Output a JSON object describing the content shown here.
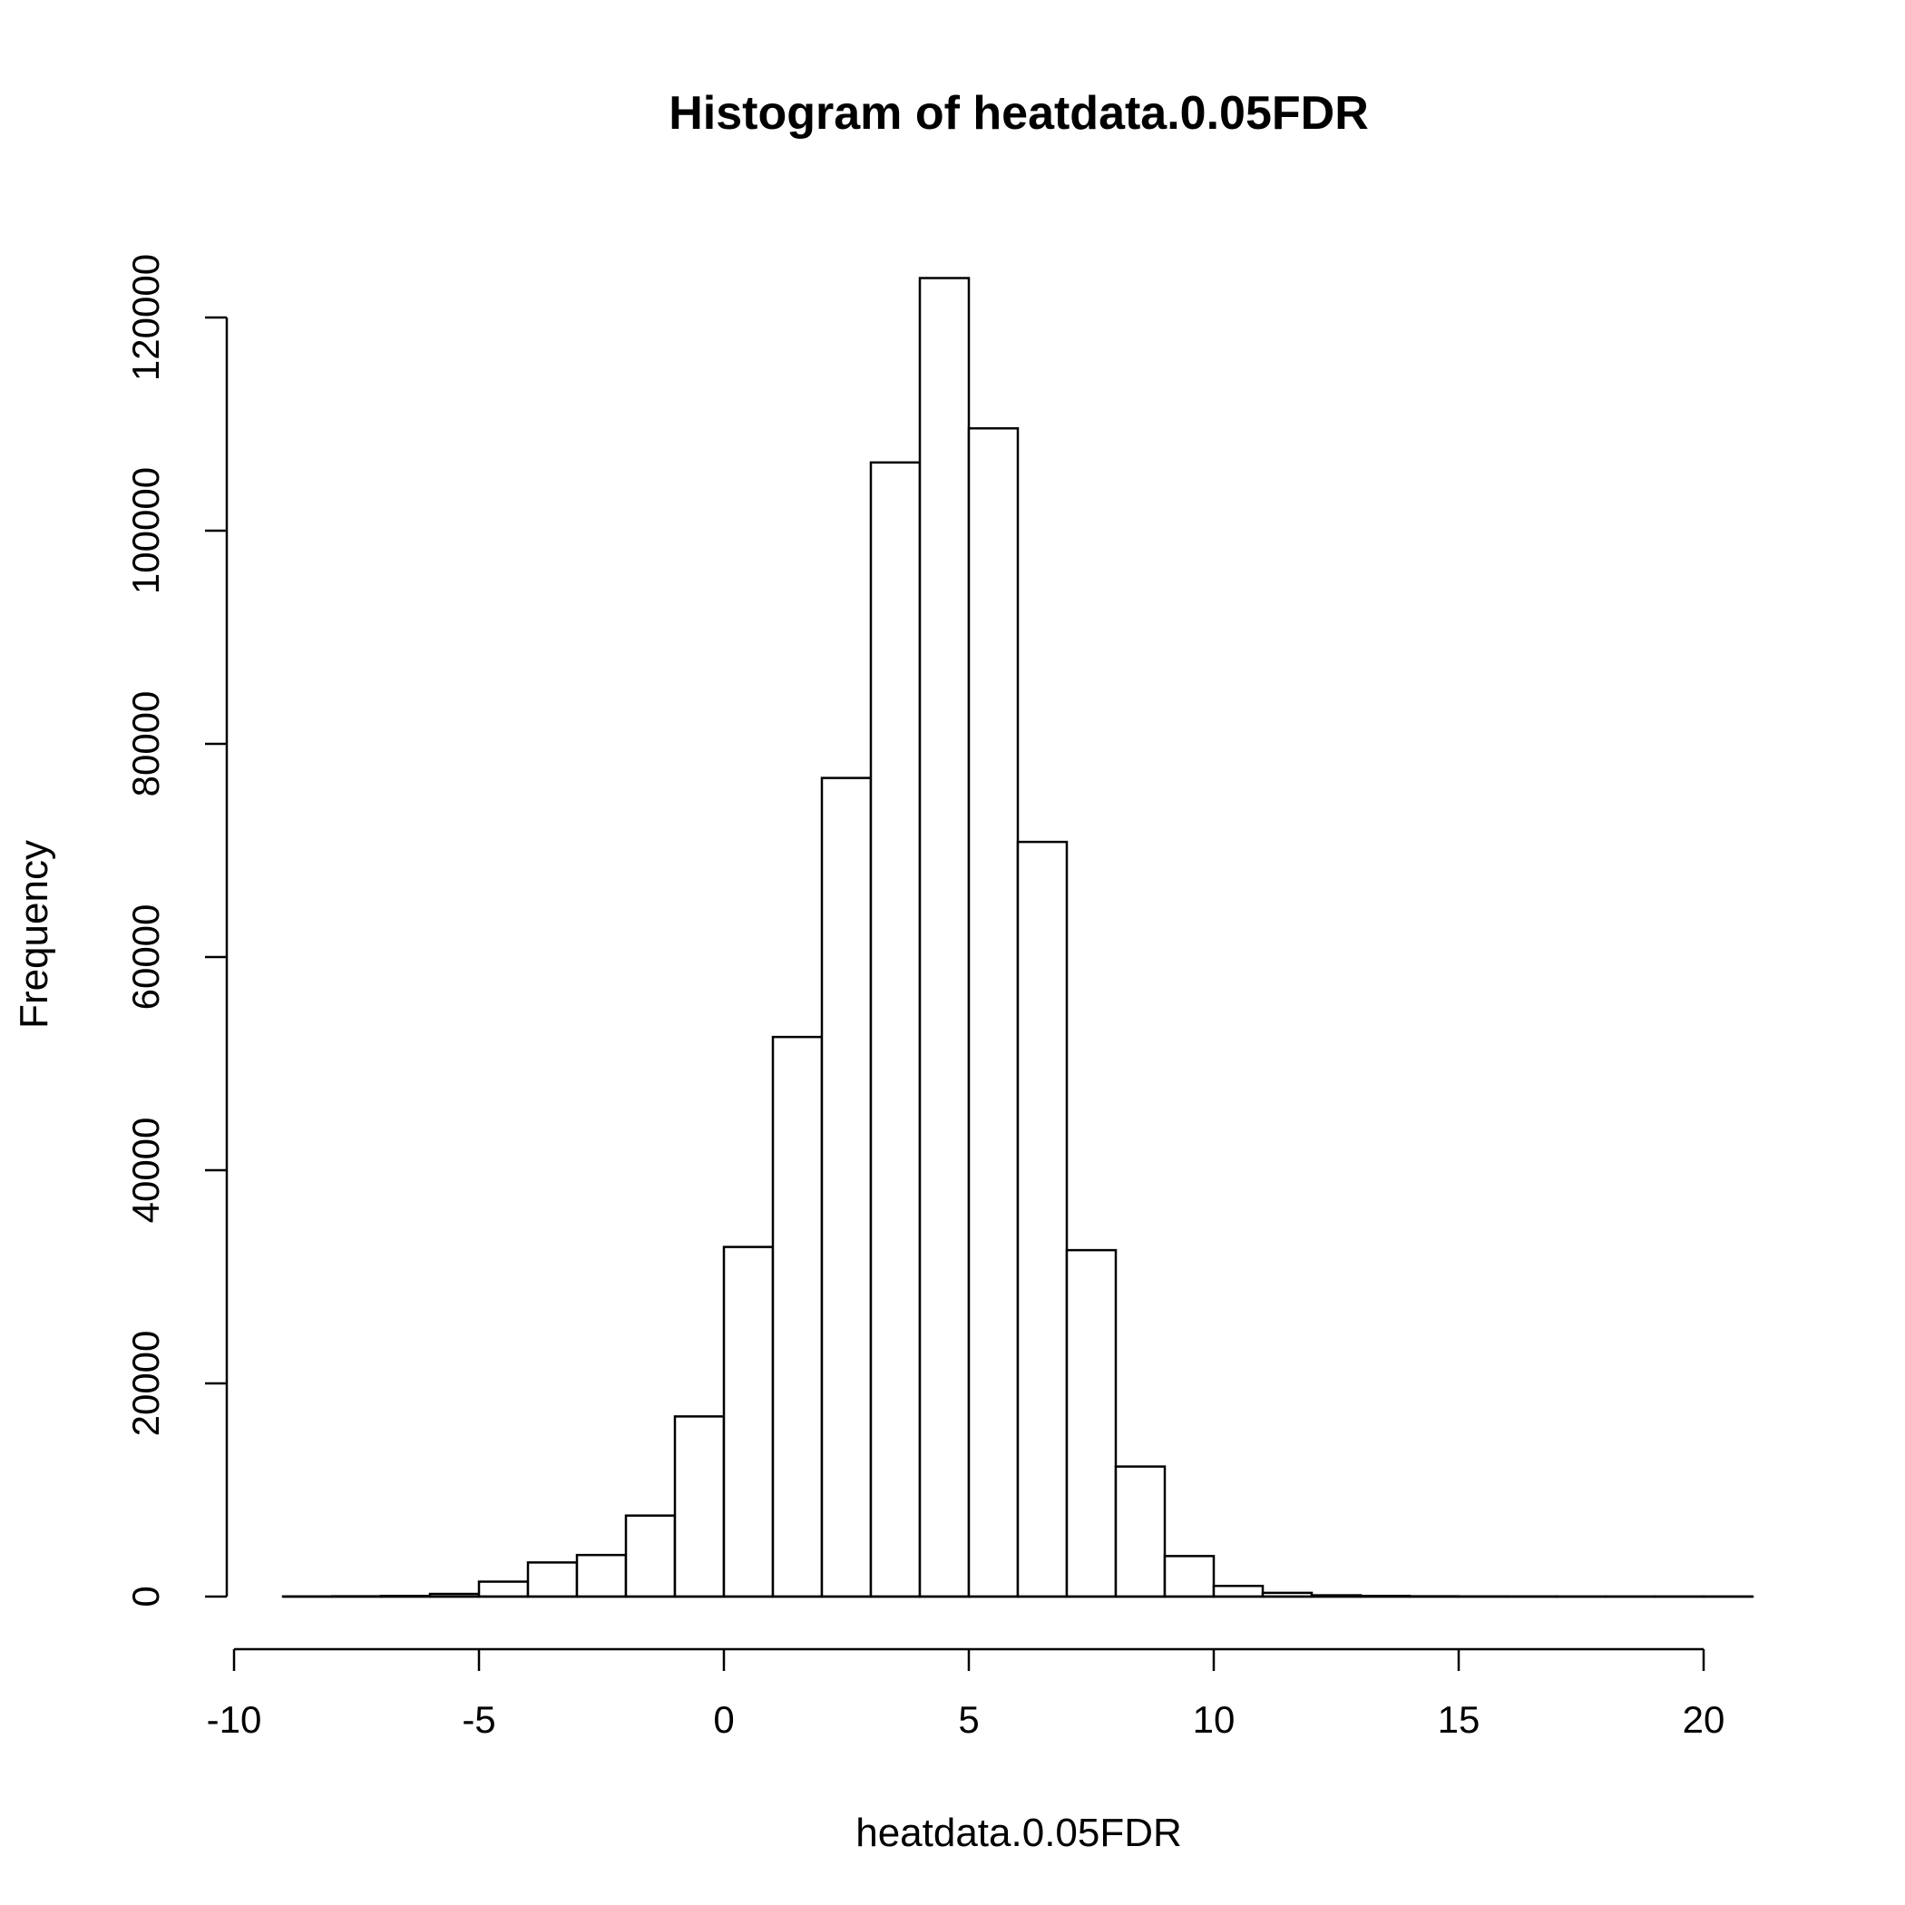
{
  "chart_data": {
    "type": "bar",
    "title": "Histogram of heatdata.0.05FDR",
    "xlabel": "heatdata.0.05FDR",
    "ylabel": "Frequency",
    "bin_width": 1,
    "bin_starts": [
      -9,
      -8,
      -7,
      -6,
      -5,
      -4,
      -3,
      -2,
      -1,
      0,
      1,
      2,
      3,
      4,
      5,
      6,
      7,
      8,
      9,
      10,
      11,
      12,
      13,
      14,
      15,
      16,
      17,
      18,
      19,
      20
    ],
    "values": [
      10,
      30,
      60,
      250,
      1400,
      3200,
      3900,
      7600,
      16900,
      32800,
      52500,
      76800,
      106400,
      123700,
      109600,
      70800,
      32500,
      12200,
      3800,
      1000,
      350,
      120,
      60,
      30,
      15,
      10,
      5,
      5,
      3,
      2
    ],
    "xlim": [
      -10,
      21
    ],
    "ylim": [
      0,
      125000
    ],
    "x_ticks": [
      -10,
      -5,
      0,
      5,
      10,
      15,
      20
    ],
    "y_ticks": [
      0,
      20000,
      40000,
      60000,
      80000,
      100000,
      120000
    ],
    "grid": false,
    "legend": false
  }
}
